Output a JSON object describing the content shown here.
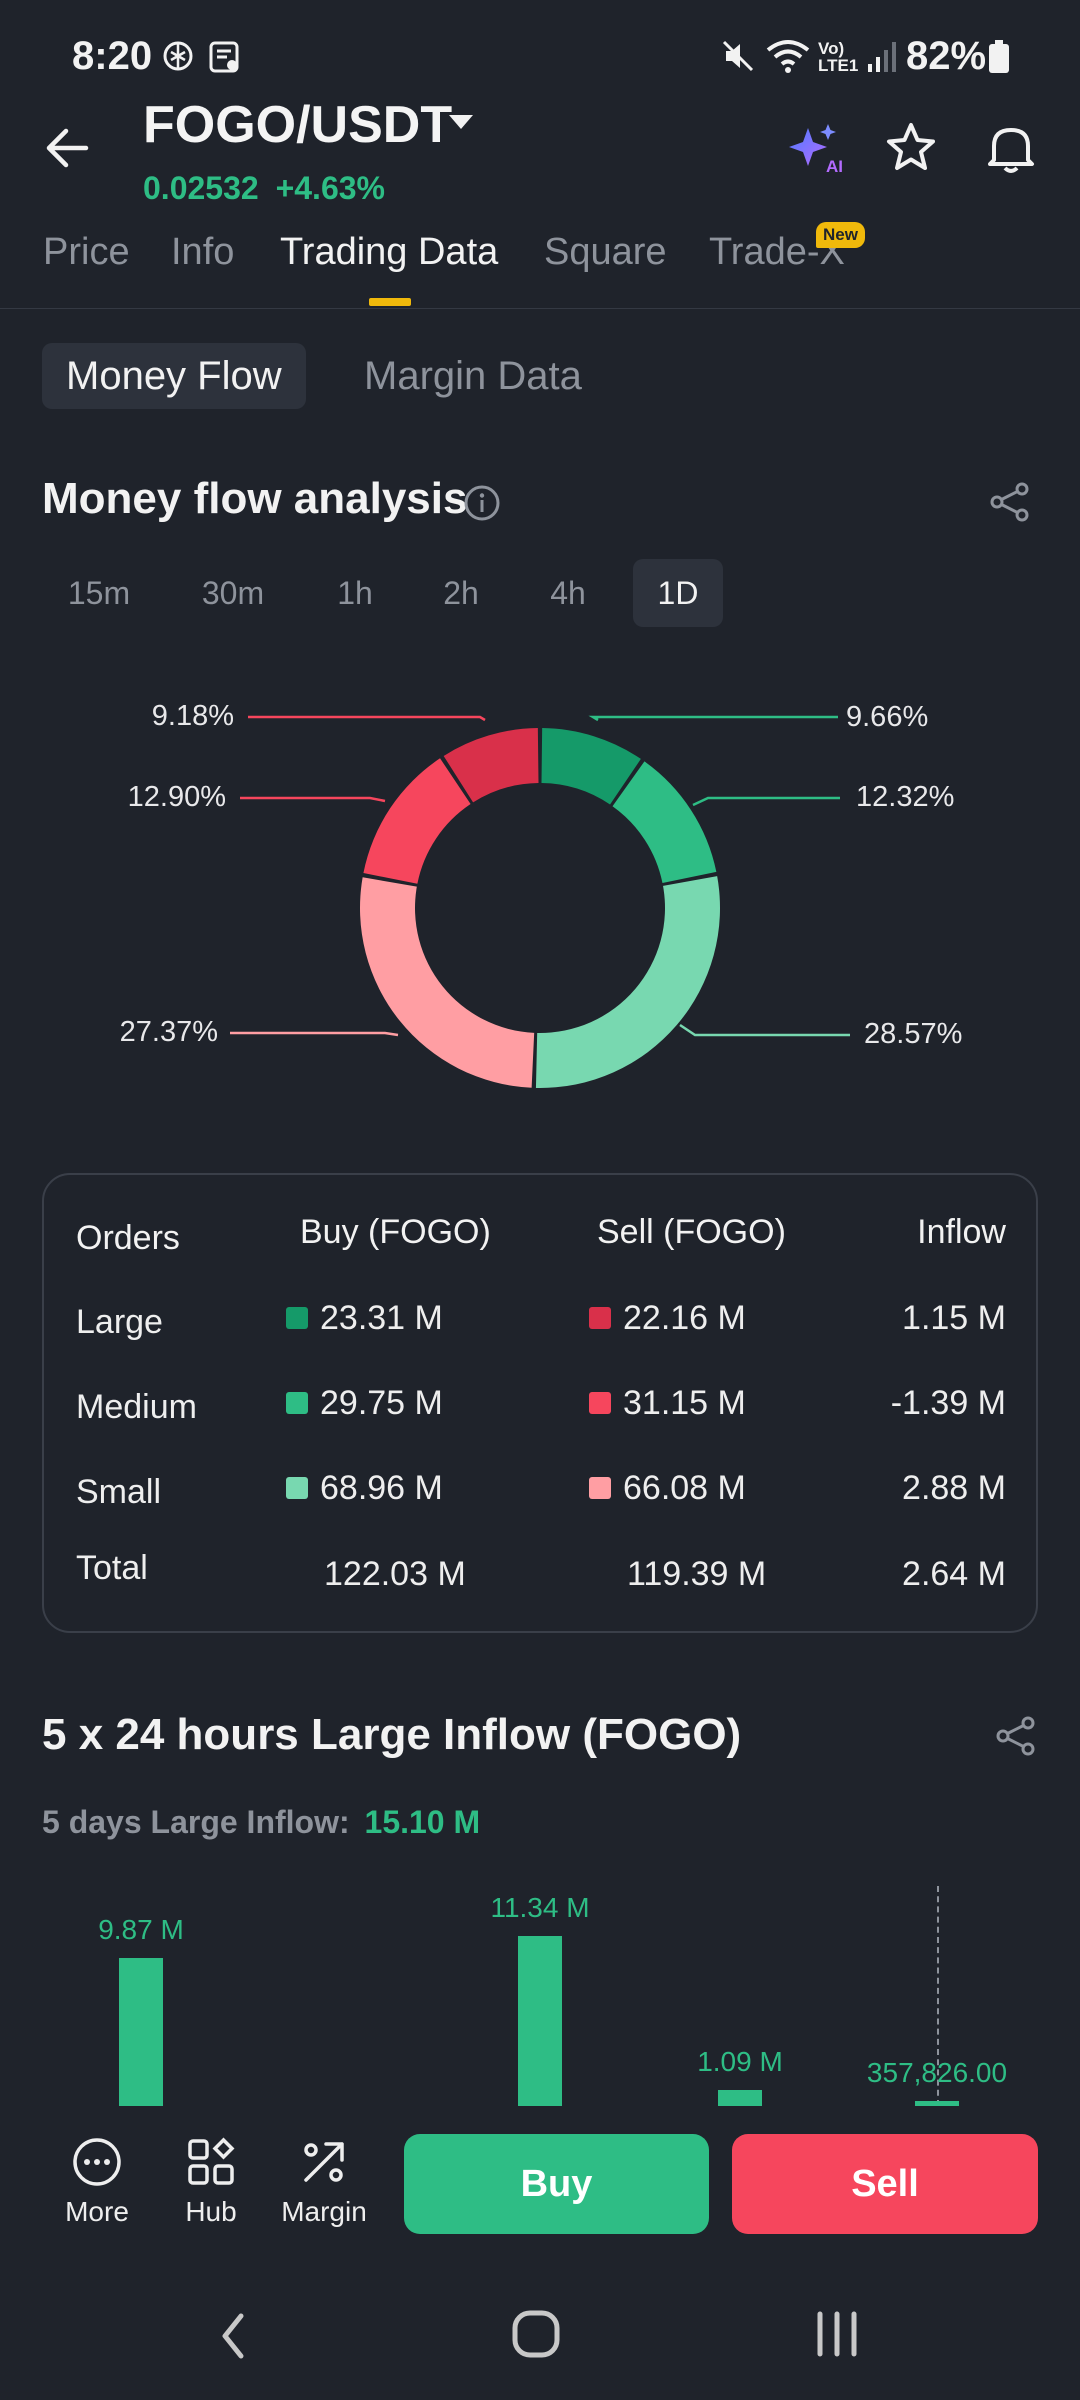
{
  "status_bar": {
    "time": "8:20",
    "battery": "82%",
    "network": "Vo) LTE1"
  },
  "header": {
    "pair": "FOGO/USDT",
    "price": "0.02532",
    "change": "+4.63%",
    "ai_label": "AI"
  },
  "tabs": [
    {
      "label": "Price"
    },
    {
      "label": "Info"
    },
    {
      "label": "Trading Data",
      "active": true
    },
    {
      "label": "Square"
    },
    {
      "label": "Trade-X",
      "badge": "New"
    }
  ],
  "subtabs": [
    {
      "label": "Money Flow",
      "active": true
    },
    {
      "label": "Margin Data"
    }
  ],
  "money_flow": {
    "title": "Money flow analysis",
    "timeframes": [
      {
        "label": "15m"
      },
      {
        "label": "30m"
      },
      {
        "label": "1h"
      },
      {
        "label": "2h"
      },
      {
        "label": "4h"
      },
      {
        "label": "1D",
        "active": true
      }
    ],
    "donut": {
      "labels": {
        "buy_large": "9.66%",
        "buy_medium": "12.32%",
        "buy_small": "28.57%",
        "sell_small": "27.37%",
        "sell_medium": "12.90%",
        "sell_large": "9.18%"
      },
      "segments": [
        {
          "key": "buy_large",
          "percent": 9.66,
          "color": "#159a69"
        },
        {
          "key": "buy_medium",
          "percent": 12.32,
          "color": "#2ebd85"
        },
        {
          "key": "buy_small",
          "percent": 28.57,
          "color": "#78d8b0"
        },
        {
          "key": "sell_small",
          "percent": 27.37,
          "color": "#ff9ea3"
        },
        {
          "key": "sell_medium",
          "percent": 12.9,
          "color": "#f6465d"
        },
        {
          "key": "sell_large",
          "percent": 9.18,
          "color": "#d9304a"
        }
      ]
    },
    "table": {
      "headers": {
        "orders": "Orders",
        "buy": "Buy (FOGO)",
        "sell": "Sell (FOGO)",
        "inflow": "Inflow"
      },
      "rows": [
        {
          "label": "Large",
          "buy": "23.31 M",
          "sell": "22.16 M",
          "inflow": "1.15 M"
        },
        {
          "label": "Medium",
          "buy": "29.75 M",
          "sell": "31.15 M",
          "inflow": "-1.39 M"
        },
        {
          "label": "Small",
          "buy": "68.96 M",
          "sell": "66.08 M",
          "inflow": "2.88 M"
        },
        {
          "label": "Total",
          "buy": "122.03 M",
          "sell": "119.39 M",
          "inflow": "2.64 M"
        }
      ],
      "colors": {
        "buy_large": "#159a69",
        "buy_medium": "#2ebd85",
        "buy_small": "#78d8b0",
        "sell_large": "#d9304a",
        "sell_medium": "#f6465d",
        "sell_small": "#ff9ea3"
      }
    }
  },
  "large_inflow": {
    "title": "5 x 24 hours Large Inflow (FOGO)",
    "summary_label": "5 days Large Inflow:",
    "summary_value": "15.10 M",
    "chart_data": {
      "type": "bar",
      "values": [
        9.87,
        11.34,
        1.09,
        0.357826
      ],
      "labels": [
        "9.87 M",
        "11.34 M",
        "1.09 M",
        "357,826.00"
      ],
      "color": "#2ebd85"
    }
  },
  "bottom_bar": {
    "more": "More",
    "hub": "Hub",
    "margin": "Margin",
    "buy": "Buy",
    "sell": "Sell"
  }
}
